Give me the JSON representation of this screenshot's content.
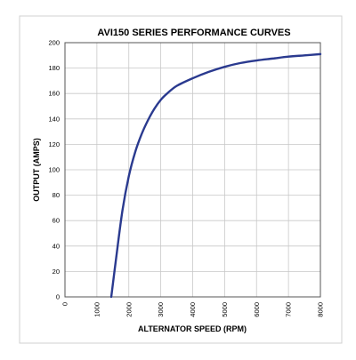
{
  "chart_data": {
    "type": "line",
    "title": "AVI150 SERIES PERFORMANCE CURVES",
    "xlabel": "ALTERNATOR SPEED (RPM)",
    "ylabel": "OUTPUT (AMPS)",
    "xlim": [
      0,
      8000
    ],
    "ylim": [
      0,
      200
    ],
    "x_ticks": [
      "0",
      "1000",
      "2000",
      "3000",
      "4000",
      "5000",
      "6000",
      "7000",
      "8000"
    ],
    "y_ticks": [
      "0",
      "20",
      "40",
      "60",
      "80",
      "100",
      "120",
      "140",
      "160",
      "180",
      "200"
    ],
    "grid": true,
    "series": [
      {
        "color": "#2a3a8f",
        "points": [
          [
            1450,
            0
          ],
          [
            1600,
            30
          ],
          [
            1800,
            68
          ],
          [
            2000,
            95
          ],
          [
            2200,
            114
          ],
          [
            2400,
            128
          ],
          [
            2600,
            139
          ],
          [
            2800,
            148
          ],
          [
            3000,
            155
          ],
          [
            3200,
            160
          ],
          [
            3500,
            166
          ],
          [
            4000,
            172
          ],
          [
            4500,
            177
          ],
          [
            5000,
            181
          ],
          [
            5500,
            184
          ],
          [
            6000,
            186
          ],
          [
            6500,
            187.5
          ],
          [
            7000,
            189
          ],
          [
            7500,
            190
          ],
          [
            8000,
            191
          ]
        ]
      }
    ]
  }
}
